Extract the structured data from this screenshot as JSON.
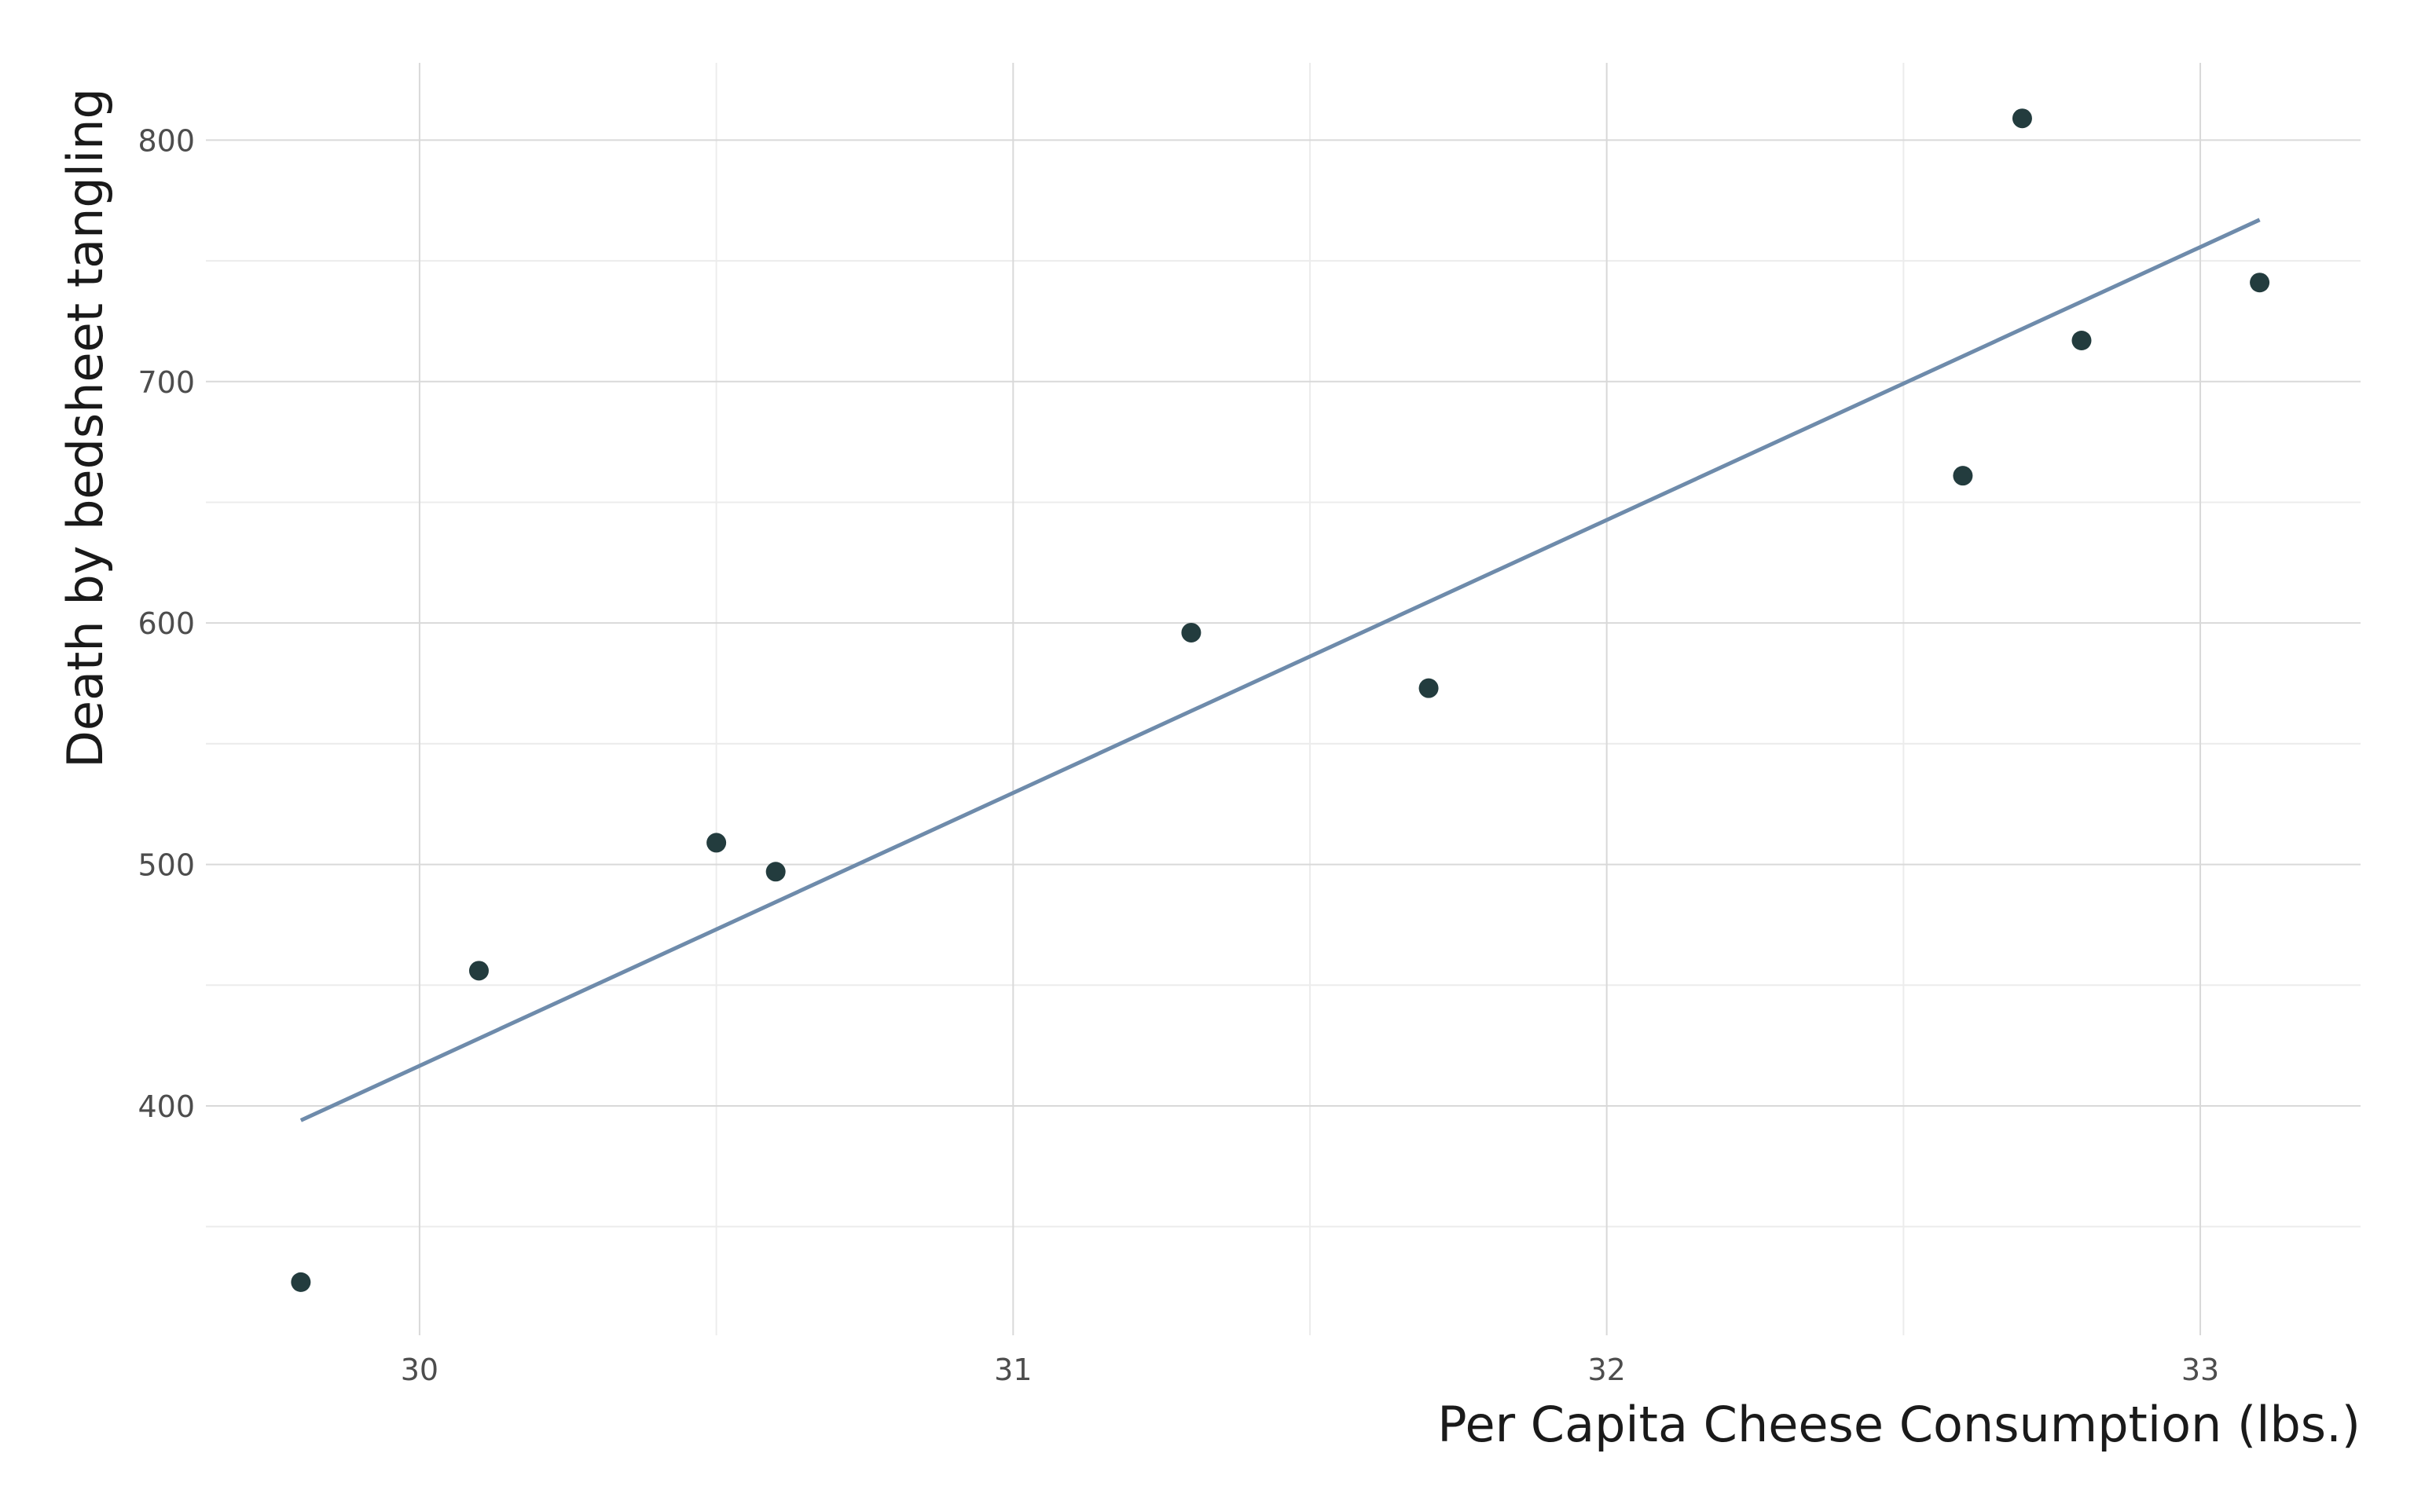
{
  "chart_data": {
    "type": "scatter",
    "title": "",
    "xlabel": "Per Capita Cheese Consumption (lbs.)",
    "ylabel": "Death by bedsheet tangling",
    "xlim": [
      29.64,
      33.27
    ],
    "ylim": [
      305,
      832
    ],
    "x_ticks": [
      30,
      31,
      32,
      33
    ],
    "x_minor_ticks": [
      29.5,
      30.5,
      31.5,
      32.5,
      33.5
    ],
    "y_ticks": [
      400,
      500,
      600,
      700,
      800
    ],
    "y_minor_ticks": [
      350,
      450,
      550,
      650,
      750
    ],
    "grid": true,
    "legend": "none",
    "colors": {
      "points": "#233c3e",
      "fit_line": "#6e8bab",
      "grid_major": "#d9d9d9",
      "grid_minor": "#ececec"
    },
    "series": [
      {
        "type": "scatter",
        "points": [
          {
            "x": 29.8,
            "y": 327
          },
          {
            "x": 30.1,
            "y": 456
          },
          {
            "x": 30.5,
            "y": 509
          },
          {
            "x": 30.6,
            "y": 497
          },
          {
            "x": 31.3,
            "y": 596
          },
          {
            "x": 31.7,
            "y": 573
          },
          {
            "x": 32.6,
            "y": 661
          },
          {
            "x": 32.7,
            "y": 809
          },
          {
            "x": 32.8,
            "y": 717
          },
          {
            "x": 33.1,
            "y": 741
          }
        ]
      },
      {
        "type": "line",
        "points": [
          {
            "x": 29.8,
            "y": 394
          },
          {
            "x": 33.1,
            "y": 767
          }
        ]
      }
    ]
  }
}
